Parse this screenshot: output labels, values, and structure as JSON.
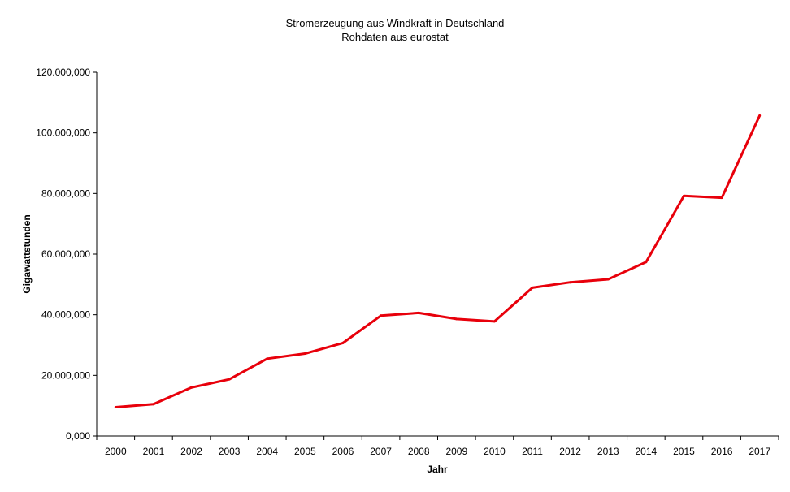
{
  "chart_data": {
    "type": "line",
    "title": "Stromerzeugung aus Windkraft in Deutschland",
    "subtitle": "Rohdaten aus eurostat",
    "xlabel": "Jahr",
    "ylabel": "Gigawattstunden",
    "categories": [
      "2000",
      "2001",
      "2002",
      "2003",
      "2004",
      "2005",
      "2006",
      "2007",
      "2008",
      "2009",
      "2010",
      "2011",
      "2012",
      "2013",
      "2014",
      "2015",
      "2016",
      "2017"
    ],
    "series": [
      {
        "values": [
          9500,
          10500,
          16000,
          18700,
          25500,
          27200,
          30700,
          39700,
          40600,
          38600,
          37800,
          48900,
          50700,
          51700,
          57400,
          79200,
          78600,
          105700
        ],
        "color": "#e8000b"
      }
    ],
    "yticks": [
      "0,000",
      "20.000,000",
      "40.000,000",
      "60.000,000",
      "80.000,000",
      "100.000,000",
      "120.000,000"
    ],
    "ylim": [
      0,
      120000
    ],
    "grid": false,
    "legend": "none"
  }
}
